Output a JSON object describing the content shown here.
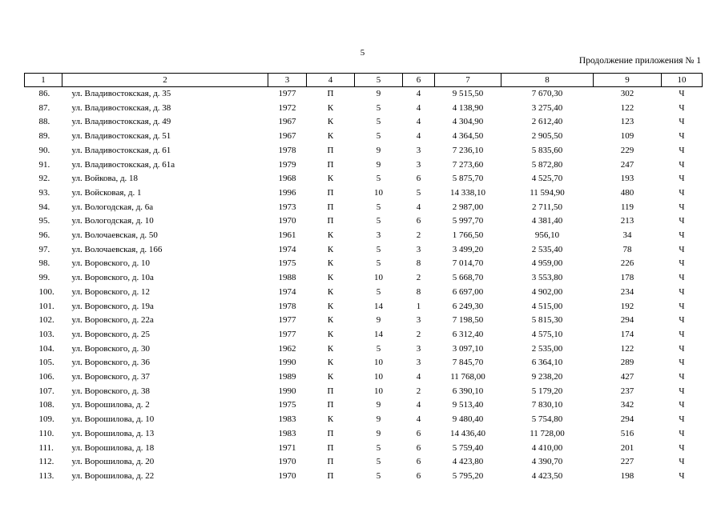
{
  "page": {
    "number": "5",
    "caption": "Продолжение приложения № 1"
  },
  "table": {
    "headers": [
      "1",
      "2",
      "3",
      "4",
      "5",
      "6",
      "7",
      "8",
      "9",
      "10"
    ],
    "rows": [
      [
        "86.",
        "ул. Владивостокская, д. 35",
        "1977",
        "П",
        "9",
        "4",
        "9 515,50",
        "7 670,30",
        "302",
        "Ч"
      ],
      [
        "87.",
        "ул. Владивостокская, д. 38",
        "1972",
        "К",
        "5",
        "4",
        "4 138,90",
        "3 275,40",
        "122",
        "Ч"
      ],
      [
        "88.",
        "ул. Владивостокская, д. 49",
        "1967",
        "К",
        "5",
        "4",
        "4 304,90",
        "2 612,40",
        "123",
        "Ч"
      ],
      [
        "89.",
        "ул. Владивостокская, д. 51",
        "1967",
        "К",
        "5",
        "4",
        "4 364,50",
        "2 905,50",
        "109",
        "Ч"
      ],
      [
        "90.",
        "ул. Владивостокская, д. 61",
        "1978",
        "П",
        "9",
        "3",
        "7 236,10",
        "5 835,60",
        "229",
        "Ч"
      ],
      [
        "91.",
        "ул. Владивостокская, д. 61а",
        "1979",
        "П",
        "9",
        "3",
        "7 273,60",
        "5 872,80",
        "247",
        "Ч"
      ],
      [
        "92.",
        "ул. Войкова, д. 18",
        "1968",
        "К",
        "5",
        "6",
        "5 875,70",
        "4 525,70",
        "193",
        "Ч"
      ],
      [
        "93.",
        "ул. Войсковая, д. 1",
        "1996",
        "П",
        "10",
        "5",
        "14 338,10",
        "11 594,90",
        "480",
        "Ч"
      ],
      [
        "94.",
        "ул. Вологодская, д. 6а",
        "1973",
        "П",
        "5",
        "4",
        "2 987,00",
        "2 711,50",
        "119",
        "Ч"
      ],
      [
        "95.",
        "ул. Вологодская, д. 10",
        "1970",
        "П",
        "5",
        "6",
        "5 997,70",
        "4 381,40",
        "213",
        "Ч"
      ],
      [
        "96.",
        "ул. Волочаевская, д. 50",
        "1961",
        "К",
        "3",
        "2",
        "1 766,50",
        "956,10",
        "34",
        "Ч"
      ],
      [
        "97.",
        "ул. Волочаевская, д. 166",
        "1974",
        "К",
        "5",
        "3",
        "3 499,20",
        "2 535,40",
        "78",
        "Ч"
      ],
      [
        "98.",
        "ул. Воровского, д. 10",
        "1975",
        "К",
        "5",
        "8",
        "7 014,70",
        "4 959,00",
        "226",
        "Ч"
      ],
      [
        "99.",
        "ул. Воровского, д. 10а",
        "1988",
        "К",
        "10",
        "2",
        "5 668,70",
        "3 553,80",
        "178",
        "Ч"
      ],
      [
        "100.",
        "ул. Воровского, д. 12",
        "1974",
        "К",
        "5",
        "8",
        "6 697,00",
        "4 902,00",
        "234",
        "Ч"
      ],
      [
        "101.",
        "ул. Воровского, д. 19а",
        "1978",
        "К",
        "14",
        "1",
        "6 249,30",
        "4 515,00",
        "192",
        "Ч"
      ],
      [
        "102.",
        "ул. Воровского, д. 22а",
        "1977",
        "К",
        "9",
        "3",
        "7 198,50",
        "5 815,30",
        "294",
        "Ч"
      ],
      [
        "103.",
        "ул. Воровского, д. 25",
        "1977",
        "К",
        "14",
        "2",
        "6 312,40",
        "4 575,10",
        "174",
        "Ч"
      ],
      [
        "104.",
        "ул. Воровского, д. 30",
        "1962",
        "К",
        "5",
        "3",
        "3 097,10",
        "2 535,00",
        "122",
        "Ч"
      ],
      [
        "105.",
        "ул. Воровского, д. 36",
        "1990",
        "К",
        "10",
        "3",
        "7 845,70",
        "6 364,10",
        "289",
        "Ч"
      ],
      [
        "106.",
        "ул. Воровского, д. 37",
        "1989",
        "К",
        "10",
        "4",
        "11 768,00",
        "9 238,20",
        "427",
        "Ч"
      ],
      [
        "107.",
        "ул. Воровского, д. 38",
        "1990",
        "П",
        "10",
        "2",
        "6 390,10",
        "5 179,20",
        "237",
        "Ч"
      ],
      [
        "108.",
        "ул. Ворошилова, д. 2",
        "1975",
        "П",
        "9",
        "4",
        "9 513,40",
        "7 830,10",
        "342",
        "Ч"
      ],
      [
        "109.",
        "ул. Ворошилова, д. 10",
        "1983",
        "К",
        "9",
        "4",
        "9 480,40",
        "5 754,80",
        "294",
        "Ч"
      ],
      [
        "110.",
        "ул. Ворошилова, д. 13",
        "1983",
        "П",
        "9",
        "6",
        "14 436,40",
        "11 728,00",
        "516",
        "Ч"
      ],
      [
        "111.",
        "ул. Ворошилова, д. 18",
        "1971",
        "П",
        "5",
        "6",
        "5 759,40",
        "4 410,00",
        "201",
        "Ч"
      ],
      [
        "112.",
        "ул. Ворошилова, д. 20",
        "1970",
        "П",
        "5",
        "6",
        "4 423,80",
        "4 390,70",
        "227",
        "Ч"
      ],
      [
        "113.",
        "ул. Ворошилова, д. 22",
        "1970",
        "П",
        "5",
        "6",
        "5 795,20",
        "4 423,50",
        "198",
        "Ч"
      ]
    ]
  }
}
